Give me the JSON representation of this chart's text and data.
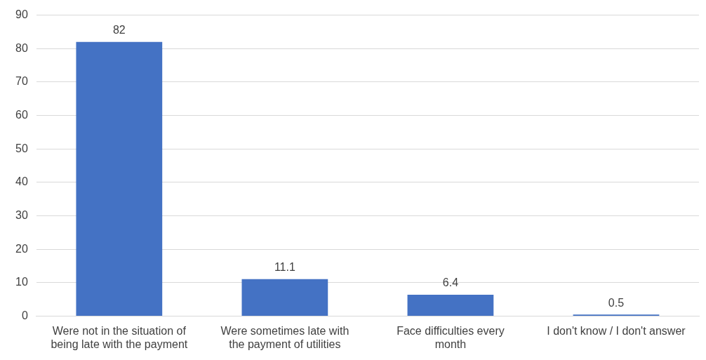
{
  "chart_data": {
    "type": "bar",
    "categories": [
      "Were not in the situation of being late with the payment",
      "Were sometimes late with the payment of utilities",
      "Face difficulties every month",
      "I don't know / I don't answer"
    ],
    "values": [
      82,
      11.1,
      6.4,
      0.5
    ],
    "color": "#4472c4",
    "ylim": [
      0,
      90
    ],
    "yticks": [
      0,
      10,
      20,
      30,
      40,
      50,
      60,
      70,
      80,
      90
    ],
    "grid": "y",
    "legend": false,
    "data_labels": true
  }
}
